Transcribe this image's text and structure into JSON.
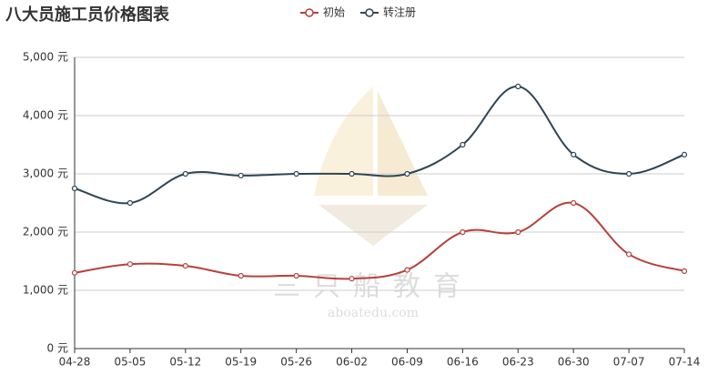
{
  "chart_data": {
    "type": "line",
    "title": "八大员施工员价格图表",
    "watermark": [
      "三只船教育",
      "aboatedu.com"
    ],
    "categories": [
      "04-28",
      "05-05",
      "05-12",
      "05-19",
      "05-26",
      "06-02",
      "06-09",
      "06-16",
      "06-23",
      "06-30",
      "07-07",
      "07-14"
    ],
    "series": [
      {
        "name": "初始",
        "color": "#b5413c",
        "values": [
          1300,
          1450,
          1420,
          1250,
          1250,
          1200,
          1350,
          2000,
          2000,
          2500,
          1620,
          1330
        ]
      },
      {
        "name": "转注册",
        "color": "#2f4554",
        "values": [
          2750,
          2500,
          3000,
          2970,
          3000,
          3000,
          3000,
          3500,
          4500,
          3330,
          3000,
          3330
        ]
      }
    ],
    "ylim": [
      0,
      5000
    ],
    "yticks": [
      {
        "value": 0,
        "label": "0 元"
      },
      {
        "value": 1000,
        "label": "1,000 元"
      },
      {
        "value": 2000,
        "label": "2,000 元"
      },
      {
        "value": 3000,
        "label": "3,000 元"
      },
      {
        "value": 4000,
        "label": "4,000 元"
      },
      {
        "value": 5000,
        "label": "5,000 元"
      }
    ],
    "grid": true,
    "smooth": true,
    "legend": "top"
  }
}
